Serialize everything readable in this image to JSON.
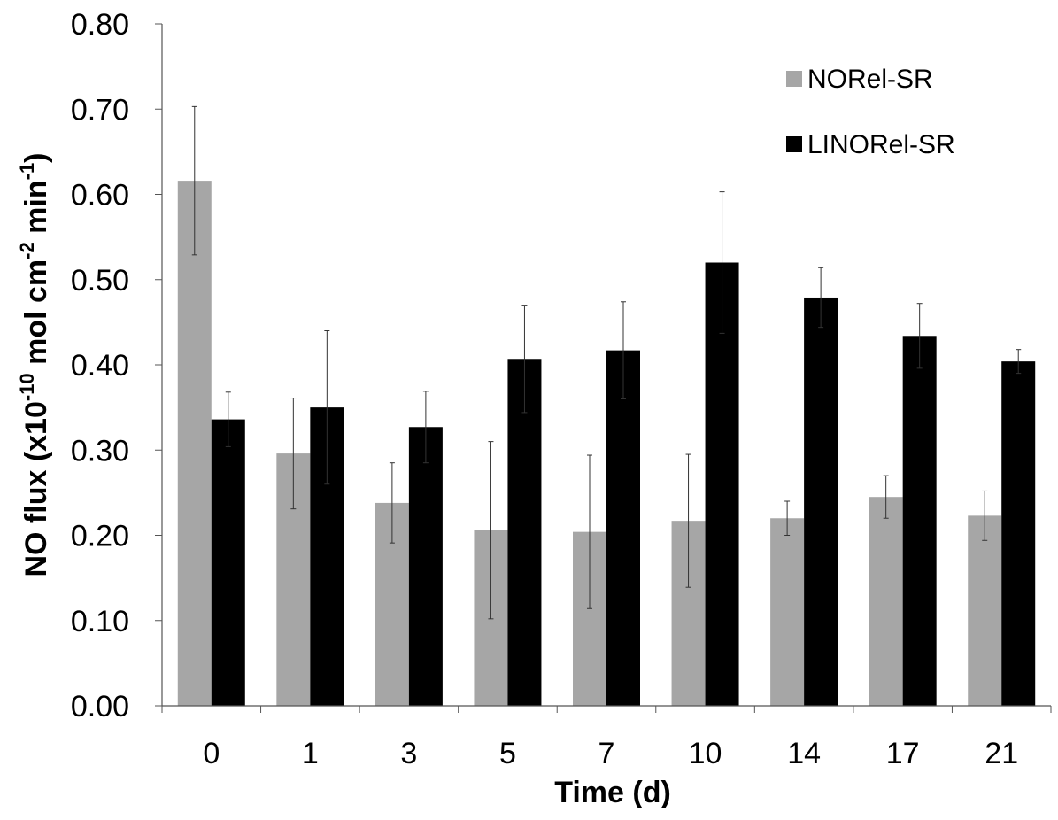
{
  "chart_data": {
    "type": "bar",
    "categories": [
      "0",
      "1",
      "3",
      "5",
      "7",
      "10",
      "14",
      "17",
      "21"
    ],
    "series": [
      {
        "name": "NORel-SR",
        "color": "#a6a6a6",
        "values": [
          0.616,
          0.296,
          0.238,
          0.206,
          0.204,
          0.217,
          0.22,
          0.245,
          0.223
        ],
        "errors": [
          0.087,
          0.065,
          0.047,
          0.104,
          0.09,
          0.078,
          0.02,
          0.025,
          0.029
        ]
      },
      {
        "name": "LINORel-SR",
        "color": "#000000",
        "values": [
          0.336,
          0.35,
          0.327,
          0.407,
          0.417,
          0.52,
          0.479,
          0.434,
          0.404
        ],
        "errors": [
          0.032,
          0.09,
          0.042,
          0.063,
          0.057,
          0.083,
          0.035,
          0.038,
          0.014
        ]
      }
    ],
    "ylim": [
      0,
      0.8
    ],
    "yticks": [
      "0.00",
      "0.10",
      "0.20",
      "0.30",
      "0.40",
      "0.50",
      "0.60",
      "0.70",
      "0.80"
    ],
    "xlabel": "Time (d)",
    "ylabel": {
      "prefix": "NO flux (x10",
      "exp1": "-10",
      "middle": " mol cm",
      "exp2": "-2",
      "middle2": " min",
      "exp3": "-1",
      "suffix": ")"
    },
    "legend_position": "top-right",
    "grid": false
  }
}
